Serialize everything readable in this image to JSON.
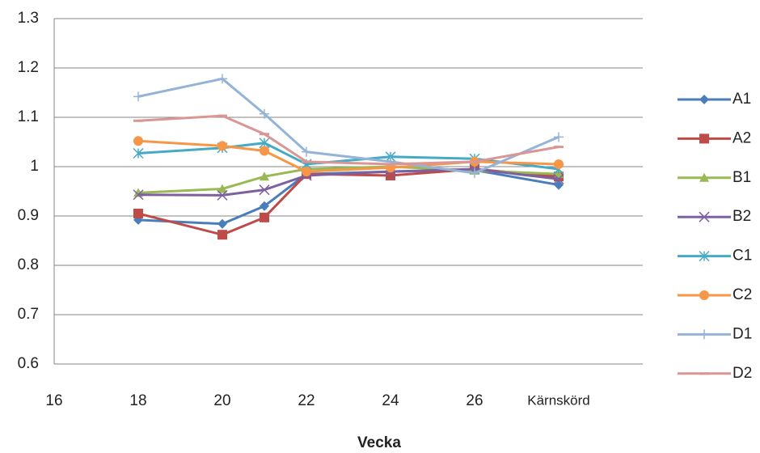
{
  "chart_data": {
    "type": "line",
    "x_label": "Vecka",
    "x": [
      18,
      20,
      21,
      22,
      24,
      26,
      28
    ],
    "xlim": [
      16,
      30
    ],
    "xticks": [
      16,
      18,
      20,
      22,
      24,
      26,
      {
        "value": 28,
        "label": "Kärnskörd"
      }
    ],
    "ylim": [
      0.6,
      1.3
    ],
    "yticks": [
      0.6,
      0.7,
      0.8,
      0.9,
      1,
      1.1,
      1.2,
      1.3
    ],
    "grid": true,
    "legend": "right",
    "series": [
      {
        "name": "A1",
        "color": "#4a7ebb",
        "marker": "diamond",
        "values": [
          0.892,
          0.884,
          0.92,
          0.985,
          0.99,
          0.993,
          0.963
        ]
      },
      {
        "name": "A2",
        "color": "#be4b48",
        "marker": "square",
        "values": [
          0.905,
          0.862,
          0.897,
          0.985,
          0.982,
          0.995,
          0.98
        ]
      },
      {
        "name": "B1",
        "color": "#98b954",
        "marker": "triangle",
        "values": [
          0.947,
          0.955,
          0.98,
          0.995,
          1.0,
          0.992,
          0.985
        ]
      },
      {
        "name": "B2",
        "color": "#7d60a0",
        "marker": "cross",
        "values": [
          0.943,
          0.942,
          0.953,
          0.982,
          0.99,
          0.995,
          0.975
        ]
      },
      {
        "name": "C1",
        "color": "#46aac5",
        "marker": "star",
        "values": [
          1.027,
          1.038,
          1.048,
          1.005,
          1.02,
          1.016,
          0.995
        ]
      },
      {
        "name": "C2",
        "color": "#f79646",
        "marker": "circle",
        "values": [
          1.052,
          1.042,
          1.032,
          0.99,
          0.998,
          1.01,
          1.005
        ]
      },
      {
        "name": "D1",
        "color": "#95b3d7",
        "marker": "plus",
        "values": [
          1.142,
          1.178,
          1.107,
          1.03,
          1.01,
          0.987,
          1.06
        ]
      },
      {
        "name": "D2",
        "color": "#d99694",
        "marker": "dash",
        "values": [
          1.093,
          1.103,
          1.066,
          1.01,
          1.005,
          1.01,
          1.04
        ]
      }
    ]
  }
}
